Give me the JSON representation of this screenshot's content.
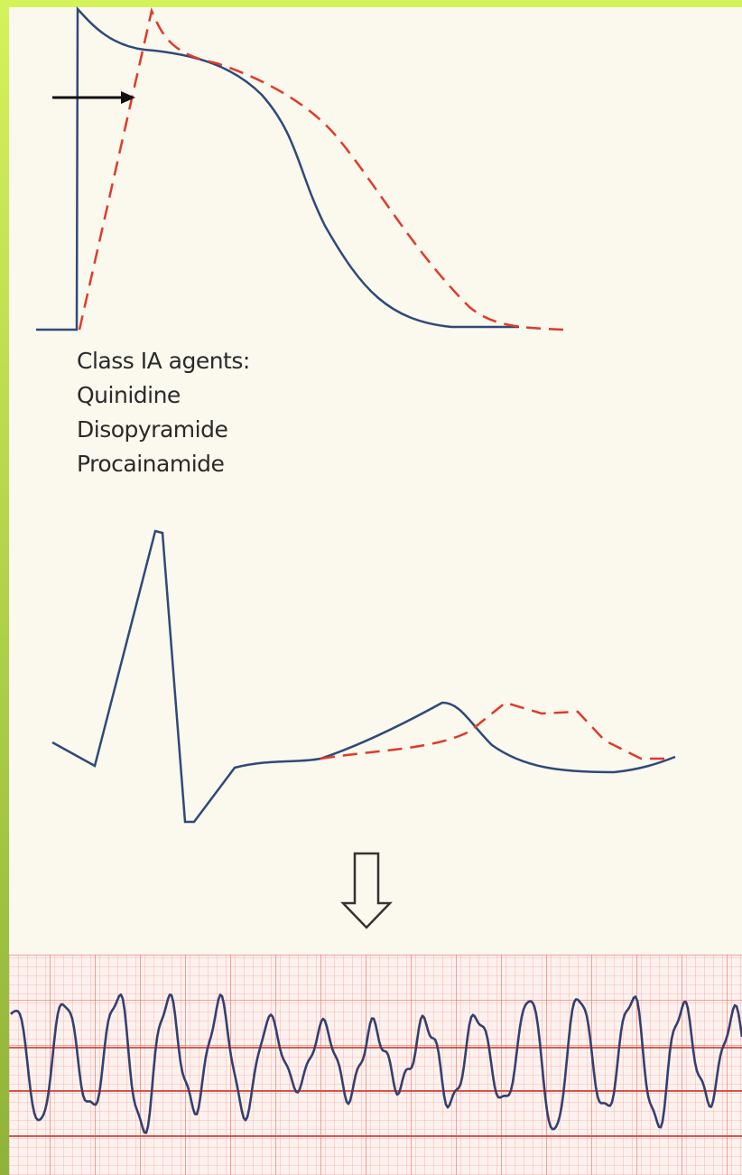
{
  "caption": {
    "heading": "Class IA agents:",
    "agents": [
      "Quinidine",
      "Disopyramide",
      "Procainamide"
    ]
  }
}
